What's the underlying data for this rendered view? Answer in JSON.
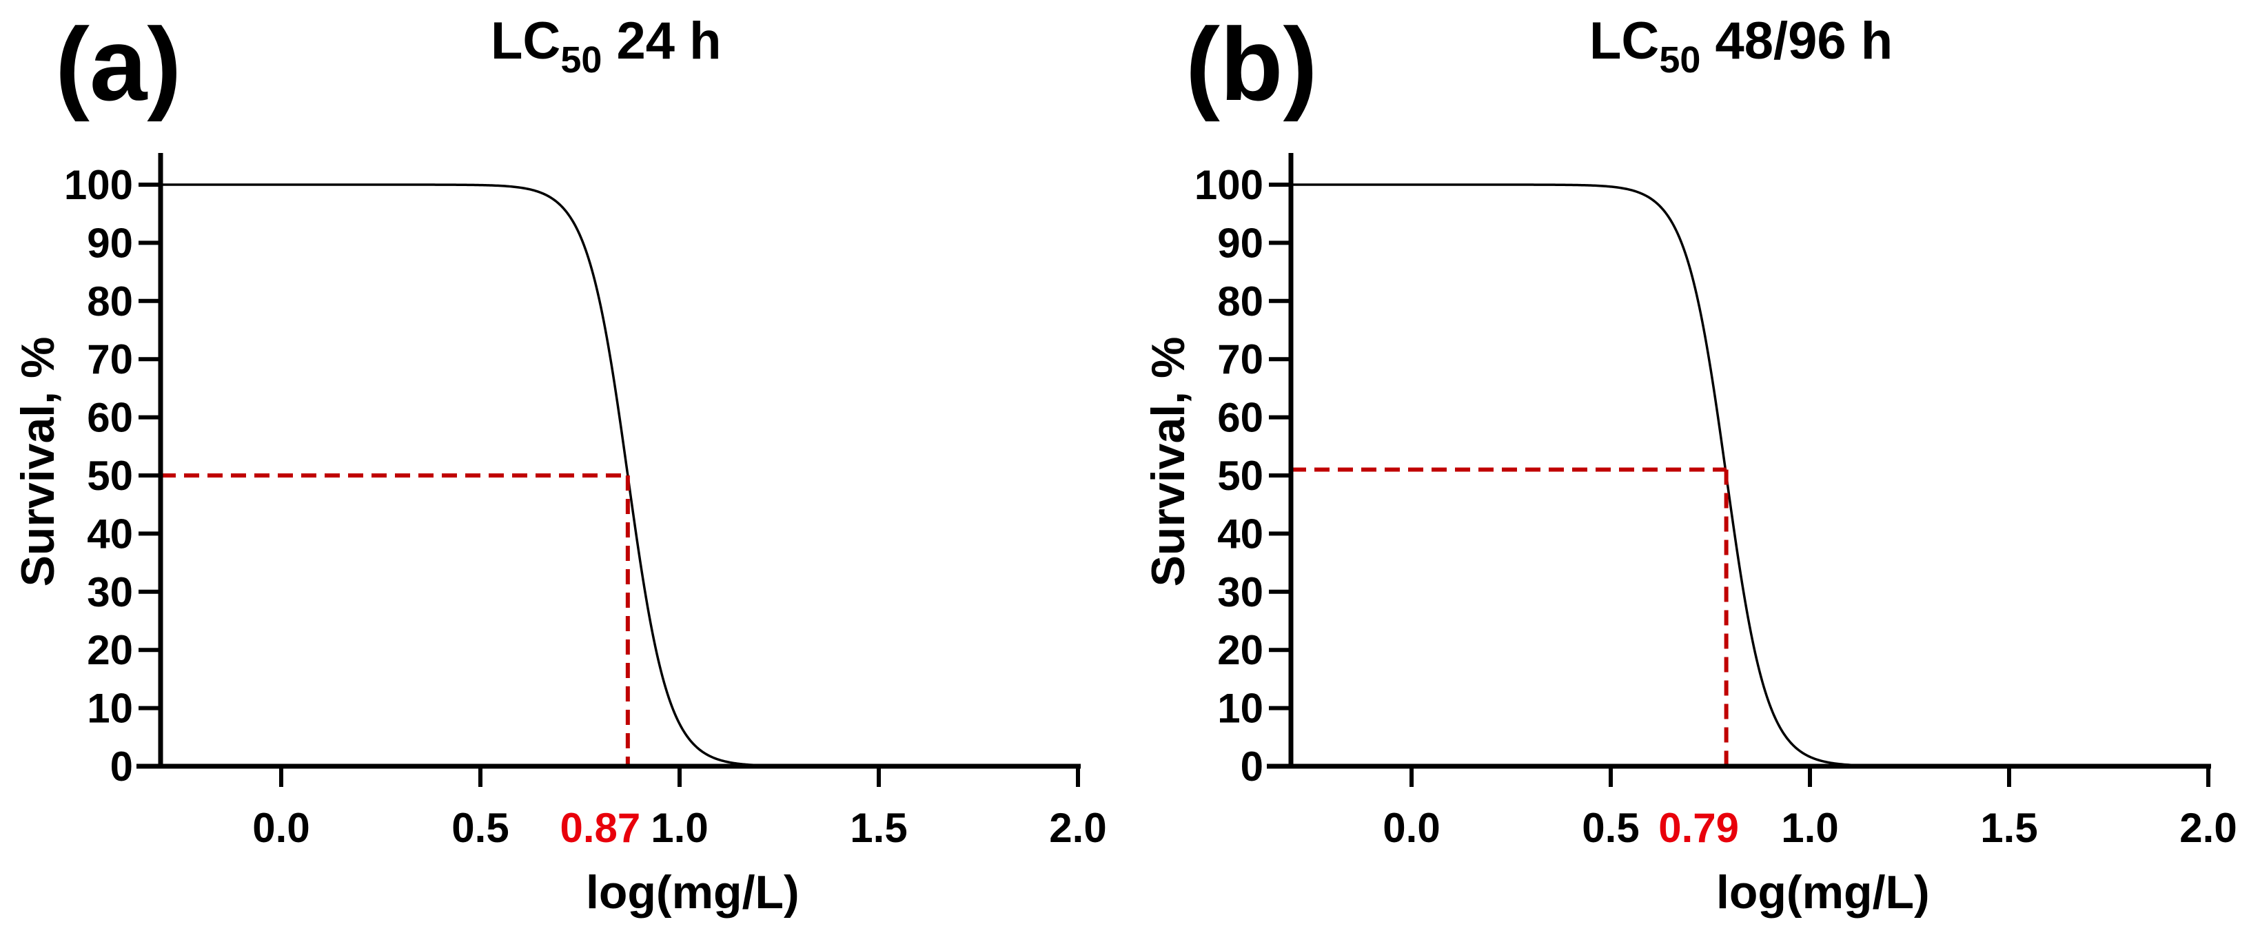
{
  "chart_data": [
    {
      "type": "line",
      "panel_label": "(a)",
      "title": {
        "main": "LC",
        "subscript": "50",
        "suffix": " 24 h"
      },
      "xlabel": "log(mg/L)",
      "ylabel": "Survival, %",
      "xlim": [
        -0.3,
        2.0
      ],
      "ylim": [
        0,
        105
      ],
      "xticks": [
        0.0,
        0.5,
        1.0,
        1.5,
        2.0
      ],
      "xtick_labels": [
        "0.0",
        "0.5",
        "1.0",
        "1.5",
        "2.0"
      ],
      "yticks": [
        0,
        10,
        20,
        30,
        40,
        50,
        60,
        70,
        80,
        90,
        100
      ],
      "ytick_labels": [
        "0",
        "10",
        "20",
        "30",
        "40",
        "50",
        "60",
        "70",
        "80",
        "90",
        "100"
      ],
      "curve": {
        "top": 100,
        "bottom": 0,
        "logLC50": 0.87,
        "hill_slope": -8.5,
        "x_start": -0.3,
        "x_end": 1.22
      },
      "lc50_marker": {
        "x": 0.87,
        "y": 50,
        "label": "0.87",
        "color": "#c00000",
        "label_color": "#e8000b"
      }
    },
    {
      "type": "line",
      "panel_label": "(b)",
      "title": {
        "main": "LC",
        "subscript": "50",
        "suffix": " 48/96 h"
      },
      "xlabel": "log(mg/L)",
      "ylabel": "Survival, %",
      "xlim": [
        -0.3,
        2.0
      ],
      "ylim": [
        0,
        105
      ],
      "xticks": [
        0.0,
        0.5,
        1.0,
        1.5,
        2.0
      ],
      "xtick_labels": [
        "0.0",
        "0.5",
        "1.0",
        "1.5",
        "2.0"
      ],
      "yticks": [
        0,
        10,
        20,
        30,
        40,
        50,
        60,
        70,
        80,
        90,
        100
      ],
      "ytick_labels": [
        "0",
        "10",
        "20",
        "30",
        "40",
        "50",
        "60",
        "70",
        "80",
        "90",
        "100"
      ],
      "curve": {
        "top": 100,
        "bottom": 0,
        "logLC50": 0.79,
        "hill_slope": -8.5,
        "x_start": -0.3,
        "x_end": 1.14
      },
      "lc50_marker": {
        "x": 0.79,
        "y": 51,
        "label": "0.79",
        "color": "#c00000",
        "label_color": "#e8000b"
      }
    }
  ]
}
